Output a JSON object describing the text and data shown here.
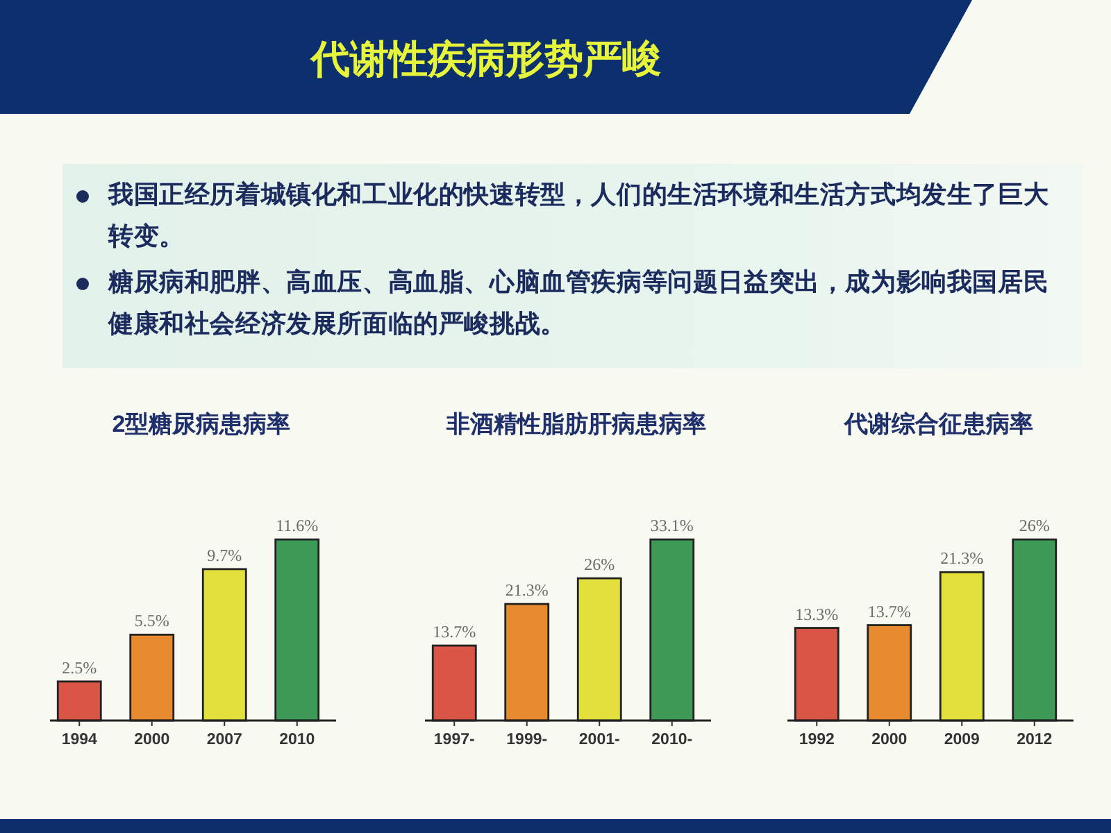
{
  "chart_data": [
    {
      "type": "other",
      "title": "代谢性疾病形势严峻",
      "annotations": [
        "我国正经历着城镇化和工业化的快速转型，人们的生活环境和生活方式均发生了巨大转变。",
        "糖尿病和肥胖、高血压、高血脂、心脑血管疾病等问题日益突出，成为影响我国居民健康和社会经济发展所面临的严峻挑战。"
      ]
    },
    {
      "type": "bar",
      "title": "2型糖尿病患病率",
      "categories": [
        "1994",
        "2000",
        "2007",
        "2010"
      ],
      "values": [
        2.5,
        5.5,
        9.7,
        11.6
      ],
      "value_labels": [
        "2.5%",
        "5.5%",
        "9.7%",
        "11.6%"
      ],
      "colors": [
        "#d95545",
        "#e88a2e",
        "#e3e03c",
        "#3d9a57"
      ]
    },
    {
      "type": "bar",
      "title": "非酒精性脂肪肝病患病率",
      "categories": [
        "1997-",
        "1999-",
        "2001-",
        "2010-"
      ],
      "values": [
        13.7,
        21.3,
        26,
        33.1
      ],
      "value_labels": [
        "13.7%",
        "21.3%",
        "26%",
        "33.1%"
      ],
      "colors": [
        "#d95545",
        "#e88a2e",
        "#e3e03c",
        "#3d9a57"
      ]
    },
    {
      "type": "bar",
      "title": "代谢综合征患病率",
      "categories": [
        "1992",
        "2000",
        "2009",
        "2012"
      ],
      "values": [
        13.3,
        13.7,
        21.3,
        26
      ],
      "value_labels": [
        "13.3%",
        "13.7%",
        "21.3%",
        "26%"
      ],
      "colors": [
        "#d95545",
        "#e88a2e",
        "#e3e03c",
        "#3d9a57"
      ]
    }
  ]
}
